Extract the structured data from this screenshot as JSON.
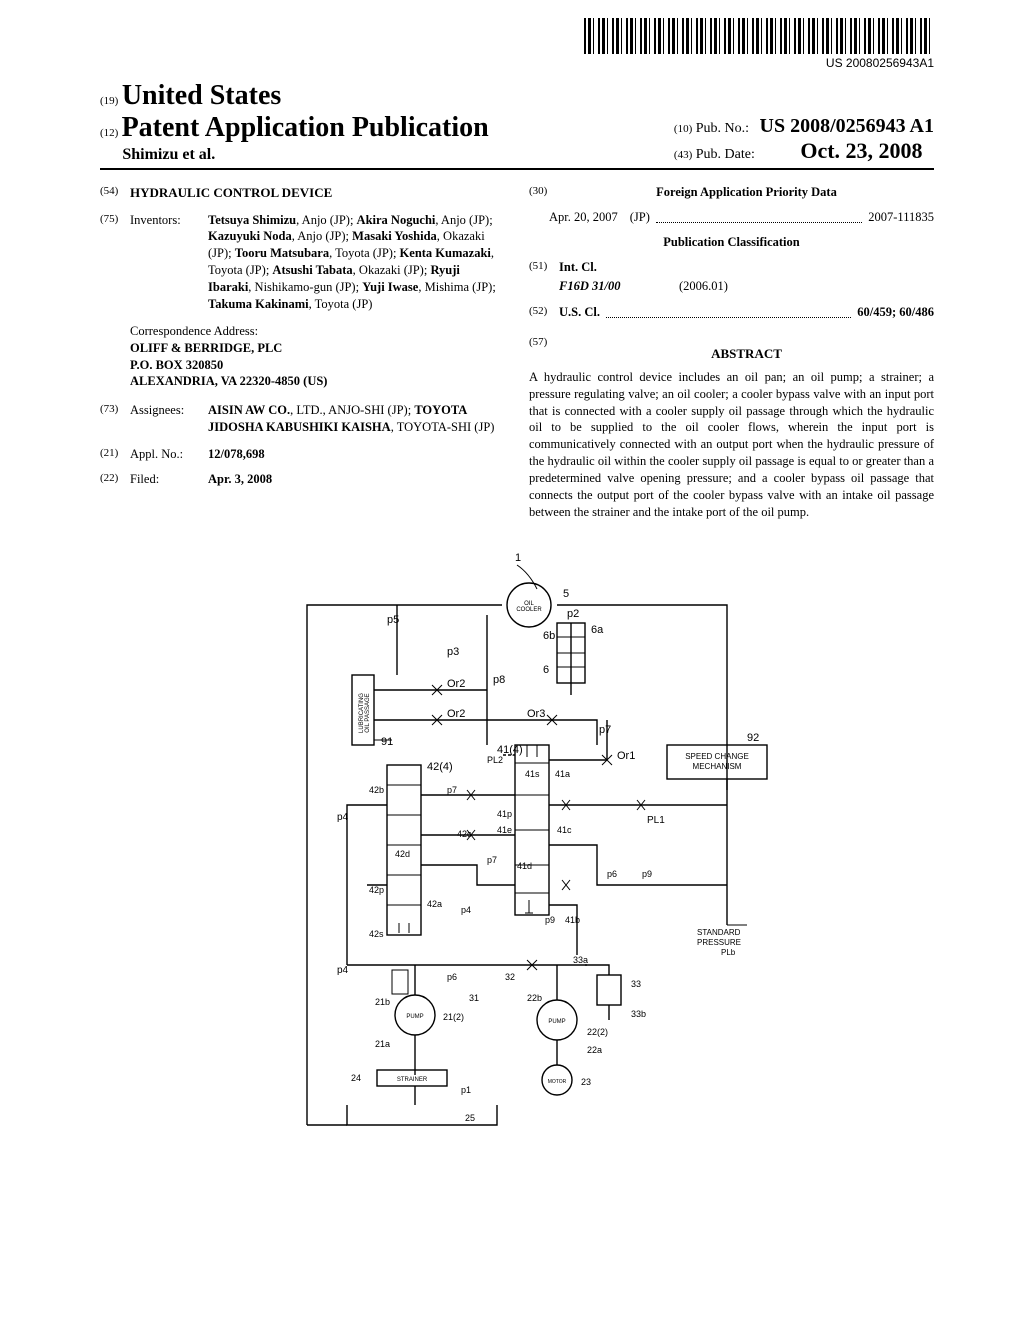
{
  "barcode_text": "US 20080256943A1",
  "header": {
    "country_prefix": "(19)",
    "country": "United States",
    "pubtype_prefix": "(12)",
    "pubtype": "Patent Application Publication",
    "authors": "Shimizu et al.",
    "pubno_prefix": "(10)",
    "pubno_label": "Pub. No.:",
    "pubno": "US 2008/0256943 A1",
    "pubdate_prefix": "(43)",
    "pubdate_label": "Pub. Date:",
    "pubdate": "Oct. 23, 2008"
  },
  "left": {
    "title_num": "(54)",
    "title": "HYDRAULIC CONTROL DEVICE",
    "inventors_num": "(75)",
    "inventors_label": "Inventors:",
    "inventors": "Tetsuya Shimizu, Anjo (JP); Akira Noguchi, Anjo (JP); Kazuyuki Noda, Anjo (JP); Masaki Yoshida, Okazaki (JP); Tooru Matsubara, Toyota (JP); Kenta Kumazaki, Toyota (JP); Atsushi Tabata, Okazaki (JP); Ryuji Ibaraki, Nishikamo-gun (JP); Yuji Iwase, Mishima (JP); Takuma Kakinami, Toyota (JP)",
    "corr_label": "Correspondence Address:",
    "corr_name": "OLIFF & BERRIDGE, PLC",
    "corr_addr1": "P.O. BOX 320850",
    "corr_addr2": "ALEXANDRIA, VA 22320-4850 (US)",
    "assignees_num": "(73)",
    "assignees_label": "Assignees:",
    "assignees": "AISIN AW CO., LTD., ANJO-SHI (JP); TOYOTA JIDOSHA KABUSHIKI KAISHA, TOYOTA-SHI (JP)",
    "applno_num": "(21)",
    "applno_label": "Appl. No.:",
    "applno": "12/078,698",
    "filed_num": "(22)",
    "filed_label": "Filed:",
    "filed": "Apr. 3, 2008"
  },
  "right": {
    "priority_num": "(30)",
    "priority_hdr": "Foreign Application Priority Data",
    "priority_date": "Apr. 20, 2007",
    "priority_country": "(JP)",
    "priority_no": "2007-111835",
    "class_hdr": "Publication Classification",
    "intcl_num": "(51)",
    "intcl_label": "Int. Cl.",
    "intcl_code": "F16D 31/00",
    "intcl_date": "(2006.01)",
    "uscl_num": "(52)",
    "uscl_label": "U.S. Cl.",
    "uscl_codes": "60/459; 60/486",
    "abstract_num": "(57)",
    "abstract_hdr": "ABSTRACT",
    "abstract": "A hydraulic control device includes an oil pan; an oil pump; a strainer; a pressure regulating valve; an oil cooler; a cooler bypass valve with an input port that is connected with a cooler supply oil passage through which the hydraulic oil to be supplied to the oil cooler flows, wherein the input port is communicatively connected with an output port when the hydraulic pressure of the hydraulic oil within the cooler supply oil passage is equal to or greater than a predetermined valve opening pressure; and a cooler bypass oil passage that connects the output port of the cooler bypass valve with an intake oil passage between the strainer and the intake port of the oil pump."
  },
  "figure": {
    "labels": {
      "ref1": "1",
      "ref5": "5",
      "oil_cooler": "OIL COOLER",
      "p1": "p1",
      "p2": "p2",
      "p3": "p3",
      "p4": "p4",
      "p5": "p5",
      "p6": "p6",
      "p7": "p7",
      "p8": "p8",
      "p9": "p9",
      "ref6": "6",
      "ref6a": "6a",
      "ref6b": "6b",
      "or1": "Or1",
      "or2a": "Or2",
      "or2b": "Or2",
      "or3": "Or3",
      "ref91": "91",
      "ref92": "92",
      "lub": "LUBRICATING OIL PASSAGE",
      "speed": "SPEED CHANGE MECHANISM",
      "ref41": "41(4)",
      "ref42": "42(4)",
      "ref41a": "41a",
      "ref41b": "41b",
      "ref41c": "41c",
      "ref41d": "41d",
      "ref41e": "41e",
      "ref41p": "41p",
      "ref41s": "41s",
      "ref42a": "42a",
      "ref42b": "42b",
      "ref42c": "42c",
      "ref42d": "42d",
      "ref42p": "42p",
      "ref42s": "42s",
      "pl1": "PL1",
      "pl2": "PL2",
      "std": "STANDARD PRESSURE PLb",
      "ref21": "21(2)",
      "ref21a": "21a",
      "ref21b": "21b",
      "ref22": "22(2)",
      "ref22a": "22a",
      "ref22b": "22b",
      "ref23": "23",
      "ref24": "24",
      "ref25": "25",
      "ref31": "31",
      "ref32": "32",
      "ref33": "33",
      "ref33a": "33a",
      "ref33b": "33b",
      "pump": "PUMP",
      "motor": "MOTOR",
      "strainer": "STRAINER"
    }
  }
}
